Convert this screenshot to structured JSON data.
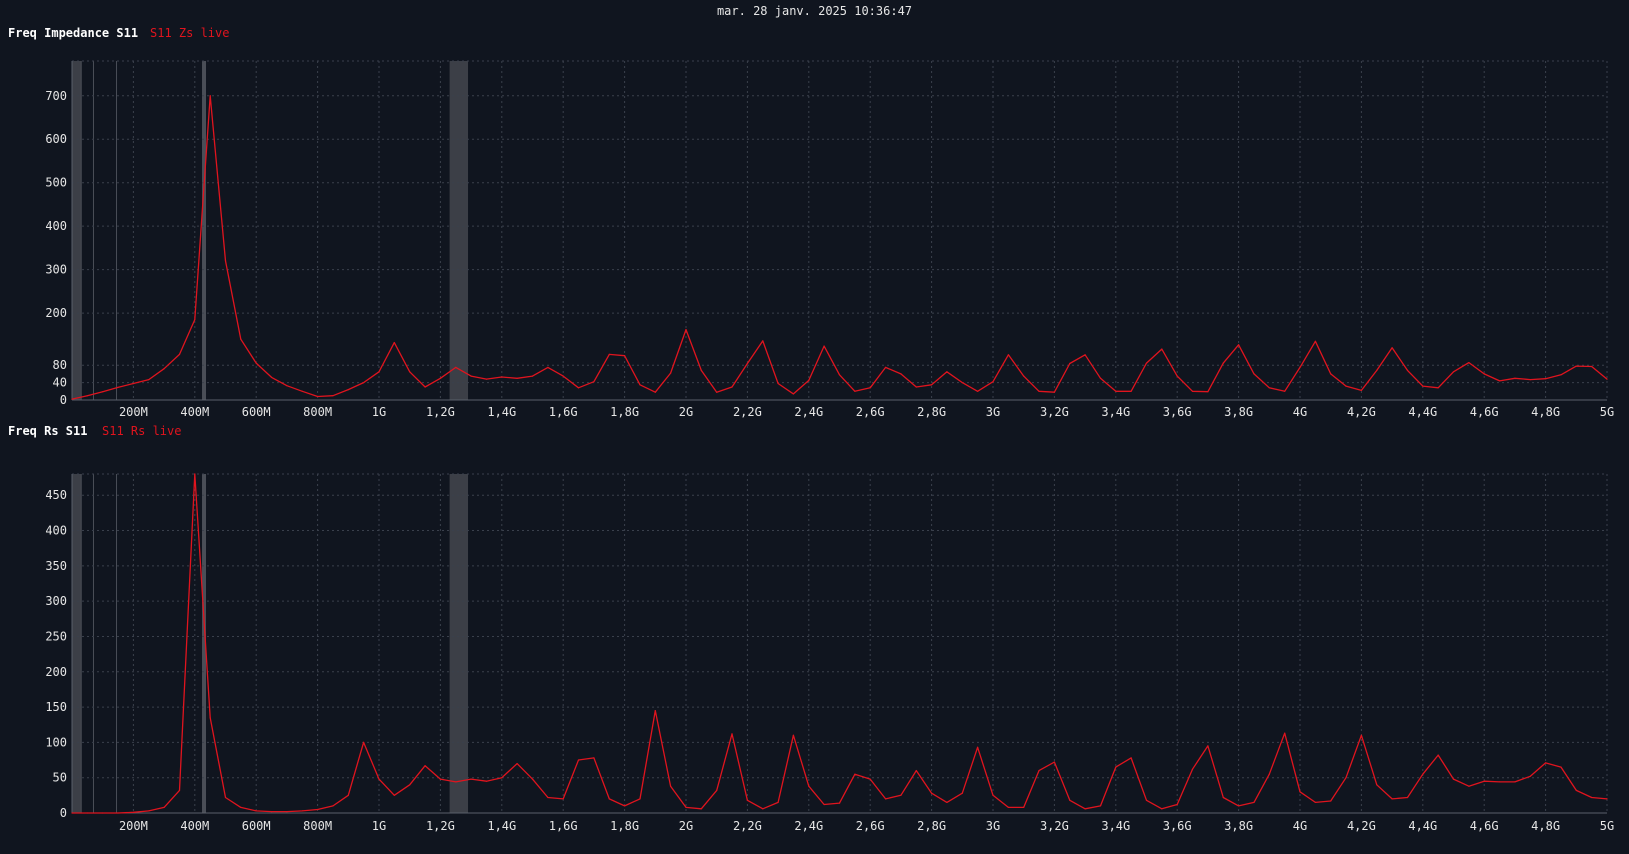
{
  "timestamp": "mar. 28 janv. 2025 10:36:47",
  "charts": [
    {
      "title": "Freq Impedance S11",
      "legend": "S11 Zs live"
    },
    {
      "title": "Freq Rs S11",
      "legend": "S11 Rs live"
    }
  ],
  "colors": {
    "background": "#10151f",
    "series": "#e0141e",
    "grid": "#3a404c",
    "band": "#3c3f47",
    "marker": "#4a4e57"
  },
  "chart_data": [
    {
      "type": "line",
      "title": "Freq Impedance S11",
      "x_unit": "Hz",
      "xlim": [
        0,
        5000000000
      ],
      "ylim": [
        0,
        780
      ],
      "y_ticks": [
        0,
        40,
        80,
        200,
        300,
        400,
        500,
        600,
        700
      ],
      "y_tick_labels": [
        "0",
        "40",
        "80",
        "200",
        "300",
        "400",
        "500",
        "600",
        "700"
      ],
      "x_ticks": [
        200000000,
        400000000,
        600000000,
        800000000,
        1000000000,
        1200000000,
        1400000000,
        1600000000,
        1800000000,
        2000000000,
        2200000000,
        2400000000,
        2600000000,
        2800000000,
        3000000000,
        3200000000,
        3400000000,
        3600000000,
        3800000000,
        4000000000,
        4200000000,
        4400000000,
        4600000000,
        4800000000,
        5000000000
      ],
      "x_tick_labels": [
        "200M",
        "400M",
        "600M",
        "800M",
        "1G",
        "1,2G",
        "1,4G",
        "1,6G",
        "1,8G",
        "2G",
        "2,2G",
        "2,4G",
        "2,6G",
        "2,8G",
        "3G",
        "3,2G",
        "3,4G",
        "3,6G",
        "3,8G",
        "4G",
        "4,2G",
        "4,4G",
        "4,6G",
        "4,8G",
        "5G"
      ],
      "grid": true,
      "bands": [
        [
          0,
          30000000
        ],
        [
          1230000000,
          1290000000
        ]
      ],
      "markers": [
        30000000,
        70000000,
        145000000,
        430000000
      ],
      "series": [
        {
          "name": "S11 Zs live",
          "color": "#e0141e",
          "x": [
            0,
            50000000,
            100000000,
            150000000,
            200000000,
            250000000,
            300000000,
            350000000,
            400000000,
            450000000,
            500000000,
            550000000,
            600000000,
            650000000,
            700000000,
            750000000,
            800000000,
            850000000,
            900000000,
            950000000,
            1000000000,
            1050000000,
            1100000000,
            1150000000,
            1200000000,
            1250000000,
            1300000000,
            1350000000,
            1400000000,
            1450000000,
            1500000000,
            1550000000,
            1600000000,
            1650000000,
            1700000000,
            1750000000,
            1800000000,
            1850000000,
            1900000000,
            1950000000,
            2000000000,
            2050000000,
            2100000000,
            2150000000,
            2200000000,
            2250000000,
            2300000000,
            2350000000,
            2400000000,
            2450000000,
            2500000000,
            2550000000,
            2600000000,
            2650000000,
            2700000000,
            2750000000,
            2800000000,
            2850000000,
            2900000000,
            2950000000,
            3000000000,
            3050000000,
            3100000000,
            3150000000,
            3200000000,
            3250000000,
            3300000000,
            3350000000,
            3400000000,
            3450000000,
            3500000000,
            3550000000,
            3600000000,
            3650000000,
            3700000000,
            3750000000,
            3800000000,
            3850000000,
            3900000000,
            3950000000,
            4000000000,
            4050000000,
            4100000000,
            4150000000,
            4200000000,
            4250000000,
            4300000000,
            4350000000,
            4400000000,
            4450000000,
            4500000000,
            4550000000,
            4600000000,
            4650000000,
            4700000000,
            4750000000,
            4800000000,
            4850000000,
            4900000000,
            4950000000,
            5000000000
          ],
          "values": [
            2,
            10,
            19,
            29,
            38,
            47,
            72,
            105,
            185,
            700,
            320,
            140,
            85,
            52,
            33,
            20,
            8,
            10,
            24,
            40,
            65,
            132,
            65,
            30,
            50,
            75,
            55,
            48,
            53,
            50,
            55,
            75,
            55,
            28,
            42,
            105,
            102,
            35,
            18,
            62,
            162,
            68,
            18,
            30,
            84,
            136,
            38,
            14,
            45,
            124,
            58,
            20,
            28,
            75,
            60,
            30,
            35,
            65,
            40,
            20,
            42,
            104,
            55,
            20,
            18,
            84,
            104,
            50,
            20,
            20,
            85,
            117,
            55,
            20,
            19,
            85,
            127,
            60,
            28,
            20,
            75,
            135,
            60,
            32,
            22,
            68,
            120,
            68,
            32,
            28,
            65,
            86,
            60,
            44,
            50,
            47,
            49,
            58,
            78,
            77,
            48
          ]
        }
      ]
    },
    {
      "type": "line",
      "title": "Freq Rs S11",
      "x_unit": "Hz",
      "xlim": [
        0,
        5000000000
      ],
      "ylim": [
        0,
        480
      ],
      "y_ticks": [
        0,
        50,
        100,
        150,
        200,
        250,
        300,
        350,
        400,
        450
      ],
      "y_tick_labels": [
        "0",
        "50",
        "100",
        "150",
        "200",
        "250",
        "300",
        "350",
        "400",
        "450"
      ],
      "x_ticks": [
        200000000,
        400000000,
        600000000,
        800000000,
        1000000000,
        1200000000,
        1400000000,
        1600000000,
        1800000000,
        2000000000,
        2200000000,
        2400000000,
        2600000000,
        2800000000,
        3000000000,
        3200000000,
        3400000000,
        3600000000,
        3800000000,
        4000000000,
        4200000000,
        4400000000,
        4600000000,
        4800000000,
        5000000000
      ],
      "x_tick_labels": [
        "200M",
        "400M",
        "600M",
        "800M",
        "1G",
        "1,2G",
        "1,4G",
        "1,6G",
        "1,8G",
        "2G",
        "2,2G",
        "2,4G",
        "2,6G",
        "2,8G",
        "3G",
        "3,2G",
        "3,4G",
        "3,6G",
        "3,8G",
        "4G",
        "4,2G",
        "4,4G",
        "4,6G",
        "4,8G",
        "5G"
      ],
      "grid": true,
      "bands": [
        [
          0,
          30000000
        ],
        [
          1230000000,
          1290000000
        ]
      ],
      "markers": [
        30000000,
        70000000,
        145000000,
        430000000
      ],
      "series": [
        {
          "name": "S11 Rs live",
          "color": "#e0141e",
          "x": [
            0,
            50000000,
            100000000,
            150000000,
            200000000,
            250000000,
            300000000,
            350000000,
            400000000,
            450000000,
            500000000,
            550000000,
            600000000,
            650000000,
            700000000,
            750000000,
            800000000,
            850000000,
            900000000,
            950000000,
            1000000000,
            1050000000,
            1100000000,
            1150000000,
            1200000000,
            1250000000,
            1300000000,
            1350000000,
            1400000000,
            1450000000,
            1500000000,
            1550000000,
            1600000000,
            1650000000,
            1700000000,
            1750000000,
            1800000000,
            1850000000,
            1900000000,
            1950000000,
            2000000000,
            2050000000,
            2100000000,
            2150000000,
            2200000000,
            2250000000,
            2300000000,
            2350000000,
            2400000000,
            2450000000,
            2500000000,
            2550000000,
            2600000000,
            2650000000,
            2700000000,
            2750000000,
            2800000000,
            2850000000,
            2900000000,
            2950000000,
            3000000000,
            3050000000,
            3100000000,
            3150000000,
            3200000000,
            3250000000,
            3300000000,
            3350000000,
            3400000000,
            3450000000,
            3500000000,
            3550000000,
            3600000000,
            3650000000,
            3700000000,
            3750000000,
            3800000000,
            3850000000,
            3900000000,
            3950000000,
            4000000000,
            4050000000,
            4100000000,
            4150000000,
            4200000000,
            4250000000,
            4300000000,
            4350000000,
            4400000000,
            4450000000,
            4500000000,
            4550000000,
            4600000000,
            4650000000,
            4700000000,
            4750000000,
            4800000000,
            4850000000,
            4900000000,
            4950000000,
            5000000000
          ],
          "values": [
            0,
            0,
            0,
            0,
            1,
            3,
            8,
            32,
            480,
            135,
            22,
            8,
            3,
            2,
            2,
            3,
            5,
            10,
            25,
            100,
            48,
            25,
            40,
            67,
            48,
            44,
            48,
            45,
            50,
            70,
            48,
            22,
            20,
            75,
            78,
            20,
            10,
            20,
            145,
            38,
            8,
            6,
            32,
            112,
            18,
            6,
            15,
            110,
            38,
            12,
            14,
            55,
            48,
            20,
            25,
            60,
            28,
            15,
            28,
            93,
            25,
            8,
            8,
            60,
            72,
            18,
            6,
            10,
            65,
            78,
            18,
            6,
            12,
            62,
            95,
            22,
            10,
            15,
            55,
            113,
            30,
            15,
            17,
            50,
            110,
            40,
            20,
            22,
            55,
            82,
            48,
            38,
            45,
            44,
            44,
            52,
            71,
            65,
            32,
            22,
            20
          ]
        }
      ]
    }
  ]
}
